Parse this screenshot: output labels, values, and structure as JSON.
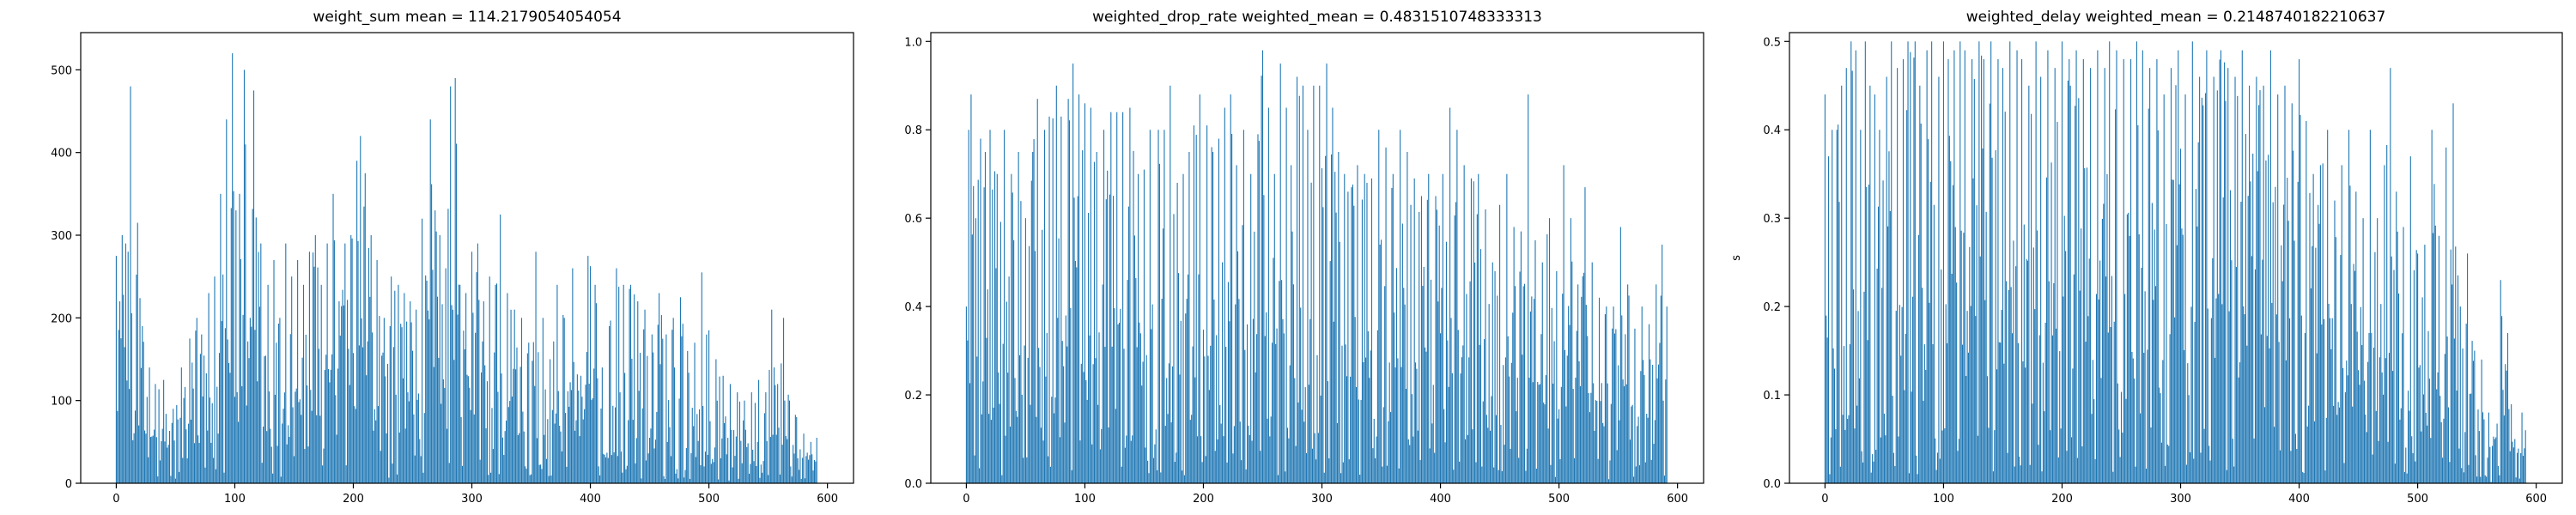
{
  "chart_data": [
    {
      "type": "bar",
      "title": "weight_sum mean = 114.2179054054054",
      "xlabel": "",
      "ylabel": "",
      "xlim": [
        -30,
        622
      ],
      "ylim": [
        0,
        545
      ],
      "xticks": [
        0,
        100,
        200,
        300,
        400,
        500,
        600
      ],
      "yticks": [
        0,
        100,
        200,
        300,
        400,
        500
      ],
      "n": 592,
      "color": "#1f77b4",
      "grid": false,
      "peaks": [
        [
          0,
          275
        ],
        [
          3,
          220
        ],
        [
          5,
          300
        ],
        [
          8,
          290
        ],
        [
          10,
          280
        ],
        [
          12,
          480
        ],
        [
          18,
          315
        ],
        [
          22,
          190
        ],
        [
          28,
          140
        ],
        [
          33,
          120
        ],
        [
          40,
          125
        ],
        [
          48,
          90
        ],
        [
          55,
          140
        ],
        [
          62,
          175
        ],
        [
          68,
          200
        ],
        [
          72,
          180
        ],
        [
          78,
          230
        ],
        [
          83,
          250
        ],
        [
          88,
          350
        ],
        [
          93,
          440
        ],
        [
          98,
          520
        ],
        [
          101,
          330
        ],
        [
          104,
          350
        ],
        [
          108,
          500
        ],
        [
          113,
          200
        ],
        [
          116,
          475
        ],
        [
          122,
          290
        ],
        [
          128,
          240
        ],
        [
          133,
          270
        ],
        [
          138,
          200
        ],
        [
          143,
          290
        ],
        [
          148,
          250
        ],
        [
          153,
          270
        ],
        [
          158,
          240
        ],
        [
          163,
          280
        ],
        [
          168,
          300
        ],
        [
          173,
          240
        ],
        [
          178,
          290
        ],
        [
          183,
          350
        ],
        [
          188,
          220
        ],
        [
          193,
          290
        ],
        [
          198,
          300
        ],
        [
          203,
          390
        ],
        [
          206,
          420
        ],
        [
          210,
          375
        ],
        [
          215,
          300
        ],
        [
          220,
          270
        ],
        [
          226,
          200
        ],
        [
          232,
          250
        ],
        [
          238,
          240
        ],
        [
          243,
          230
        ],
        [
          248,
          220
        ],
        [
          253,
          210
        ],
        [
          258,
          320
        ],
        [
          262,
          245
        ],
        [
          265,
          440
        ],
        [
          269,
          330
        ],
        [
          273,
          300
        ],
        [
          278,
          260
        ],
        [
          282,
          480
        ],
        [
          286,
          490
        ],
        [
          290,
          240
        ],
        [
          295,
          230
        ],
        [
          300,
          280
        ],
        [
          305,
          290
        ],
        [
          310,
          220
        ],
        [
          315,
          250
        ],
        [
          320,
          240
        ],
        [
          324,
          325
        ],
        [
          330,
          230
        ],
        [
          336,
          210
        ],
        [
          342,
          200
        ],
        [
          348,
          170
        ],
        [
          354,
          280
        ],
        [
          360,
          200
        ],
        [
          366,
          150
        ],
        [
          372,
          240
        ],
        [
          378,
          200
        ],
        [
          385,
          260
        ],
        [
          392,
          130
        ],
        [
          398,
          275
        ],
        [
          404,
          240
        ],
        [
          410,
          140
        ],
        [
          416,
          190
        ],
        [
          422,
          260
        ],
        [
          428,
          240
        ],
        [
          434,
          240
        ],
        [
          440,
          220
        ],
        [
          446,
          210
        ],
        [
          452,
          180
        ],
        [
          458,
          230
        ],
        [
          464,
          180
        ],
        [
          470,
          200
        ],
        [
          476,
          225
        ],
        [
          482,
          160
        ],
        [
          488,
          170
        ],
        [
          494,
          255
        ],
        [
          500,
          185
        ],
        [
          506,
          150
        ],
        [
          512,
          130
        ],
        [
          518,
          120
        ],
        [
          524,
          110
        ],
        [
          530,
          100
        ],
        [
          536,
          110
        ],
        [
          542,
          125
        ],
        [
          548,
          110
        ],
        [
          553,
          210
        ],
        [
          558,
          120
        ],
        [
          563,
          200
        ],
        [
          568,
          100
        ],
        [
          574,
          80
        ],
        [
          580,
          60
        ],
        [
          586,
          50
        ],
        [
          591,
          55
        ]
      ]
    },
    {
      "type": "bar",
      "title": "weighted_drop_rate weighted_mean = 0.4831510748333313",
      "xlabel": "",
      "ylabel": "",
      "xlim": [
        -30,
        622
      ],
      "ylim": [
        0,
        1.02
      ],
      "xticks": [
        0,
        100,
        200,
        300,
        400,
        500,
        600
      ],
      "yticks": [
        0.0,
        0.2,
        0.4,
        0.6,
        0.8,
        1.0
      ],
      "n": 592,
      "color": "#1f77b4",
      "grid": false,
      "peaks": [
        [
          0,
          0.4
        ],
        [
          2,
          0.8
        ],
        [
          4,
          0.88
        ],
        [
          8,
          0.6
        ],
        [
          12,
          0.78
        ],
        [
          16,
          0.75
        ],
        [
          20,
          0.8
        ],
        [
          26,
          0.7
        ],
        [
          32,
          0.8
        ],
        [
          38,
          0.7
        ],
        [
          44,
          0.75
        ],
        [
          50,
          0.6
        ],
        [
          56,
          0.75
        ],
        [
          60,
          0.87
        ],
        [
          66,
          0.8
        ],
        [
          70,
          0.83
        ],
        [
          76,
          0.9
        ],
        [
          80,
          0.83
        ],
        [
          86,
          0.87
        ],
        [
          90,
          0.95
        ],
        [
          95,
          0.88
        ],
        [
          100,
          0.86
        ],
        [
          105,
          0.85
        ],
        [
          110,
          0.75
        ],
        [
          116,
          0.8
        ],
        [
          122,
          0.84
        ],
        [
          127,
          0.84
        ],
        [
          132,
          0.84
        ],
        [
          138,
          0.85
        ],
        [
          145,
          0.7
        ],
        [
          150,
          0.71
        ],
        [
          155,
          0.8
        ],
        [
          162,
          0.8
        ],
        [
          167,
          0.8
        ],
        [
          172,
          0.9
        ],
        [
          178,
          0.68
        ],
        [
          183,
          0.7
        ],
        [
          188,
          0.75
        ],
        [
          192,
          0.81
        ],
        [
          197,
          0.88
        ],
        [
          203,
          0.81
        ],
        [
          208,
          0.75
        ],
        [
          213,
          0.78
        ],
        [
          218,
          0.85
        ],
        [
          223,
          0.88
        ],
        [
          228,
          0.72
        ],
        [
          234,
          0.8
        ],
        [
          240,
          0.7
        ],
        [
          246,
          0.79
        ],
        [
          250,
          0.98
        ],
        [
          255,
          0.85
        ],
        [
          260,
          0.7
        ],
        [
          265,
          0.95
        ],
        [
          270,
          0.85
        ],
        [
          274,
          0.72
        ],
        [
          279,
          0.92
        ],
        [
          284,
          0.9
        ],
        [
          288,
          0.8
        ],
        [
          293,
          0.9
        ],
        [
          298,
          0.9
        ],
        [
          304,
          0.95
        ],
        [
          309,
          0.85
        ],
        [
          314,
          0.75
        ],
        [
          319,
          0.7
        ],
        [
          325,
          0.67
        ],
        [
          330,
          0.72
        ],
        [
          336,
          0.7
        ],
        [
          342,
          0.69
        ],
        [
          348,
          0.8
        ],
        [
          354,
          0.76
        ],
        [
          360,
          0.7
        ],
        [
          366,
          0.8
        ],
        [
          372,
          0.75
        ],
        [
          378,
          0.69
        ],
        [
          384,
          0.65
        ],
        [
          390,
          0.7
        ],
        [
          396,
          0.65
        ],
        [
          402,
          0.7
        ],
        [
          408,
          0.85
        ],
        [
          414,
          0.8
        ],
        [
          420,
          0.72
        ],
        [
          426,
          0.69
        ],
        [
          432,
          0.7
        ],
        [
          438,
          0.62
        ],
        [
          444,
          0.5
        ],
        [
          450,
          0.63
        ],
        [
          456,
          0.7
        ],
        [
          462,
          0.58
        ],
        [
          468,
          0.57
        ],
        [
          474,
          0.88
        ],
        [
          480,
          0.55
        ],
        [
          486,
          0.5
        ],
        [
          492,
          0.6
        ],
        [
          498,
          0.48
        ],
        [
          504,
          0.72
        ],
        [
          510,
          0.6
        ],
        [
          516,
          0.45
        ],
        [
          522,
          0.67
        ],
        [
          528,
          0.5
        ],
        [
          534,
          0.42
        ],
        [
          540,
          0.4
        ],
        [
          546,
          0.4
        ],
        [
          552,
          0.58
        ],
        [
          558,
          0.45
        ],
        [
          564,
          0.35
        ],
        [
          570,
          0.4
        ],
        [
          576,
          0.36
        ],
        [
          582,
          0.45
        ],
        [
          587,
          0.54
        ],
        [
          591,
          0.4
        ]
      ]
    },
    {
      "type": "bar",
      "title": "weighted_delay weighted_mean = 0.2148740182210637",
      "xlabel": "",
      "ylabel": "s",
      "xlim": [
        -30,
        622
      ],
      "ylim": [
        0,
        0.51
      ],
      "xticks": [
        0,
        100,
        200,
        300,
        400,
        500,
        600
      ],
      "yticks": [
        0.0,
        0.1,
        0.2,
        0.3,
        0.4,
        0.5
      ],
      "n": 592,
      "color": "#1f77b4",
      "grid": false,
      "peaks": [
        [
          0,
          0.44
        ],
        [
          3,
          0.37
        ],
        [
          6,
          0.4
        ],
        [
          10,
          0.4
        ],
        [
          14,
          0.45
        ],
        [
          18,
          0.47
        ],
        [
          22,
          0.5
        ],
        [
          26,
          0.49
        ],
        [
          30,
          0.4
        ],
        [
          34,
          0.5
        ],
        [
          38,
          0.45
        ],
        [
          42,
          0.44
        ],
        [
          46,
          0.4
        ],
        [
          52,
          0.46
        ],
        [
          56,
          0.5
        ],
        [
          61,
          0.47
        ],
        [
          66,
          0.48
        ],
        [
          70,
          0.5
        ],
        [
          76,
          0.5
        ],
        [
          80,
          0.45
        ],
        [
          86,
          0.49
        ],
        [
          90,
          0.5
        ],
        [
          96,
          0.46
        ],
        [
          100,
          0.5
        ],
        [
          104,
          0.48
        ],
        [
          109,
          0.49
        ],
        [
          114,
          0.5
        ],
        [
          118,
          0.49
        ],
        [
          124,
          0.48
        ],
        [
          130,
          0.5
        ],
        [
          134,
          0.48
        ],
        [
          140,
          0.5
        ],
        [
          146,
          0.48
        ],
        [
          150,
          0.47
        ],
        [
          156,
          0.5
        ],
        [
          162,
          0.49
        ],
        [
          166,
          0.48
        ],
        [
          172,
          0.45
        ],
        [
          178,
          0.5
        ],
        [
          182,
          0.46
        ],
        [
          188,
          0.49
        ],
        [
          194,
          0.47
        ],
        [
          200,
          0.5
        ],
        [
          206,
          0.48
        ],
        [
          212,
          0.49
        ],
        [
          218,
          0.48
        ],
        [
          224,
          0.47
        ],
        [
          230,
          0.49
        ],
        [
          236,
          0.47
        ],
        [
          240,
          0.5
        ],
        [
          246,
          0.49
        ],
        [
          252,
          0.48
        ],
        [
          258,
          0.48
        ],
        [
          263,
          0.5
        ],
        [
          268,
          0.49
        ],
        [
          274,
          0.47
        ],
        [
          280,
          0.48
        ],
        [
          286,
          0.44
        ],
        [
          292,
          0.47
        ],
        [
          298,
          0.49
        ],
        [
          304,
          0.44
        ],
        [
          310,
          0.5
        ],
        [
          316,
          0.46
        ],
        [
          322,
          0.49
        ],
        [
          328,
          0.46
        ],
        [
          334,
          0.49
        ],
        [
          340,
          0.47
        ],
        [
          346,
          0.46
        ],
        [
          352,
          0.49
        ],
        [
          358,
          0.45
        ],
        [
          364,
          0.46
        ],
        [
          370,
          0.45
        ],
        [
          376,
          0.49
        ],
        [
          382,
          0.44
        ],
        [
          388,
          0.45
        ],
        [
          394,
          0.43
        ],
        [
          400,
          0.48
        ],
        [
          406,
          0.41
        ],
        [
          412,
          0.35
        ],
        [
          418,
          0.36
        ],
        [
          424,
          0.4
        ],
        [
          430,
          0.32
        ],
        [
          436,
          0.36
        ],
        [
          442,
          0.4
        ],
        [
          448,
          0.33
        ],
        [
          454,
          0.3
        ],
        [
          460,
          0.4
        ],
        [
          466,
          0.3
        ],
        [
          472,
          0.36
        ],
        [
          477,
          0.47
        ],
        [
          482,
          0.33
        ],
        [
          488,
          0.29
        ],
        [
          494,
          0.37
        ],
        [
          500,
          0.26
        ],
        [
          506,
          0.27
        ],
        [
          512,
          0.4
        ],
        [
          518,
          0.28
        ],
        [
          524,
          0.38
        ],
        [
          530,
          0.43
        ],
        [
          536,
          0.2
        ],
        [
          542,
          0.26
        ],
        [
          548,
          0.15
        ],
        [
          554,
          0.14
        ],
        [
          560,
          0.08
        ],
        [
          565,
          0.05
        ],
        [
          570,
          0.23
        ],
        [
          576,
          0.17
        ],
        [
          582,
          0.05
        ],
        [
          588,
          0.08
        ],
        [
          591,
          0.06
        ]
      ]
    }
  ]
}
